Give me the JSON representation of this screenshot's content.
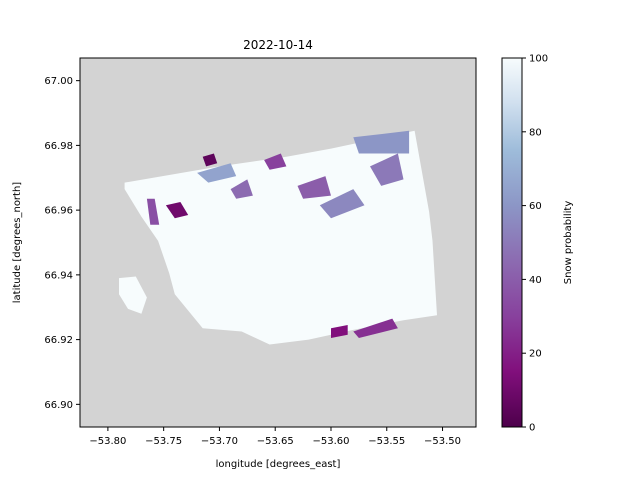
{
  "chart_data": {
    "type": "heatmap",
    "title": "2022-10-14",
    "xlabel": "longitude [degrees_east]",
    "ylabel": "latitude [degrees_north]",
    "xlim": [
      -53.825,
      -53.47
    ],
    "ylim": [
      66.893,
      67.007
    ],
    "xticks": [
      -53.8,
      -53.75,
      -53.7,
      -53.65,
      -53.6,
      -53.55,
      -53.5
    ],
    "xtick_labels": [
      "−53.80",
      "−53.75",
      "−53.70",
      "−53.65",
      "−53.60",
      "−53.55",
      "−53.50"
    ],
    "yticks": [
      66.9,
      66.92,
      66.94,
      66.96,
      66.98,
      67.0
    ],
    "ytick_labels": [
      "66.90",
      "66.92",
      "66.94",
      "66.96",
      "66.98",
      "67.00"
    ],
    "colorbar": {
      "label": "Snow probability",
      "min": 0,
      "max": 100,
      "ticks": [
        0,
        20,
        40,
        60,
        80,
        100
      ],
      "tick_labels": [
        "0",
        "20",
        "40",
        "60",
        "80",
        "100"
      ],
      "colormap": "BuPu_r"
    },
    "background_color": "#d3d3d3",
    "no_data_color": "#d3d3d3",
    "grid": false,
    "legend": "none",
    "main_swath": [
      [
        -53.785,
        66.9685
      ],
      [
        -53.7,
        66.9735
      ],
      [
        -53.64,
        66.9765
      ],
      [
        -53.6,
        66.979
      ],
      [
        -53.525,
        66.9845
      ],
      [
        -53.512,
        66.9595
      ],
      [
        -53.509,
        66.9505
      ],
      [
        -53.505,
        66.9275
      ],
      [
        -53.535,
        66.926
      ],
      [
        -53.58,
        66.923
      ],
      [
        -53.62,
        66.92
      ],
      [
        -53.655,
        66.9185
      ],
      [
        -53.68,
        66.9225
      ],
      [
        -53.715,
        66.9235
      ],
      [
        -53.74,
        66.934
      ],
      [
        -53.745,
        66.9405
      ],
      [
        -53.755,
        66.9505
      ],
      [
        -53.77,
        66.958
      ],
      [
        -53.785,
        66.9665
      ]
    ],
    "island_swath": [
      [
        -53.79,
        66.939
      ],
      [
        -53.775,
        66.9395
      ],
      [
        -53.765,
        66.933
      ],
      [
        -53.77,
        66.928
      ],
      [
        -53.782,
        66.9295
      ],
      [
        -53.79,
        66.934
      ]
    ],
    "low_probability_regions": [
      {
        "value": 10,
        "points": [
          [
            -53.748,
            66.9615
          ],
          [
            -53.735,
            66.9625
          ],
          [
            -53.728,
            66.9585
          ],
          [
            -53.74,
            66.9575
          ]
        ]
      },
      {
        "value": 35,
        "points": [
          [
            -53.765,
            66.9635
          ],
          [
            -53.758,
            66.9635
          ],
          [
            -53.754,
            66.9555
          ],
          [
            -53.762,
            66.9555
          ]
        ]
      },
      {
        "value": 5,
        "points": [
          [
            -53.715,
            66.9765
          ],
          [
            -53.705,
            66.9775
          ],
          [
            -53.702,
            66.9745
          ],
          [
            -53.712,
            66.9735
          ]
        ]
      },
      {
        "value": 30,
        "points": [
          [
            -53.66,
            66.9755
          ],
          [
            -53.645,
            66.9775
          ],
          [
            -53.64,
            66.9735
          ],
          [
            -53.655,
            66.9725
          ]
        ]
      },
      {
        "value": 40,
        "points": [
          [
            -53.63,
            66.9675
          ],
          [
            -53.605,
            66.9705
          ],
          [
            -53.6,
            66.9645
          ],
          [
            -53.625,
            66.9635
          ]
        ]
      },
      {
        "value": 55,
        "points": [
          [
            -53.61,
            66.9615
          ],
          [
            -53.58,
            66.9665
          ],
          [
            -53.57,
            66.9615
          ],
          [
            -53.6,
            66.9575
          ]
        ]
      },
      {
        "value": 50,
        "points": [
          [
            -53.565,
            66.9735
          ],
          [
            -53.54,
            66.9775
          ],
          [
            -53.535,
            66.9695
          ],
          [
            -53.555,
            66.9675
          ]
        ]
      },
      {
        "value": 60,
        "points": [
          [
            -53.58,
            66.9825
          ],
          [
            -53.53,
            66.9845
          ],
          [
            -53.53,
            66.9775
          ],
          [
            -53.575,
            66.9775
          ]
        ]
      },
      {
        "value": 25,
        "points": [
          [
            -53.58,
            66.9225
          ],
          [
            -53.545,
            66.9265
          ],
          [
            -53.54,
            66.9235
          ],
          [
            -53.575,
            66.9205
          ]
        ]
      },
      {
        "value": 15,
        "points": [
          [
            -53.6,
            66.9235
          ],
          [
            -53.585,
            66.9245
          ],
          [
            -53.585,
            66.9215
          ],
          [
            -53.6,
            66.9205
          ]
        ]
      },
      {
        "value": 45,
        "points": [
          [
            -53.69,
            66.9665
          ],
          [
            -53.675,
            66.9695
          ],
          [
            -53.67,
            66.9645
          ],
          [
            -53.685,
            66.9635
          ]
        ]
      },
      {
        "value": 65,
        "points": [
          [
            -53.72,
            66.9715
          ],
          [
            -53.69,
            66.9745
          ],
          [
            -53.685,
            66.9705
          ],
          [
            -53.71,
            66.9685
          ]
        ]
      }
    ]
  }
}
